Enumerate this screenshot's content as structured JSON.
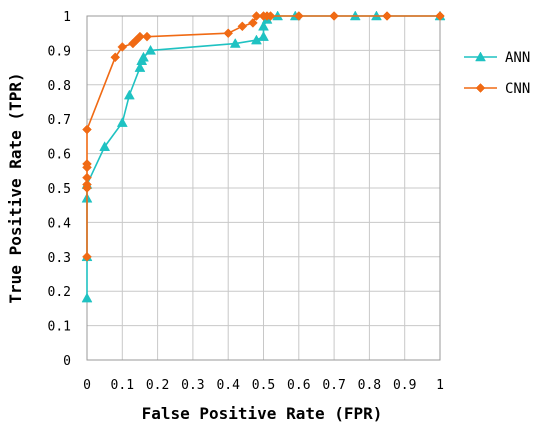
{
  "chart_data": {
    "type": "line",
    "title": "",
    "xlabel": "False Positive Rate (FPR)",
    "ylabel": "True Positive Rate (TPR)",
    "xlim": [
      0,
      1
    ],
    "ylim": [
      0,
      1
    ],
    "x_ticks": [
      "0",
      "0.1",
      "0.2",
      "0.3",
      "0.4",
      "0.5",
      "0.6",
      "0.7",
      "0.8",
      "0.9",
      "1"
    ],
    "y_ticks": [
      "0",
      "0.1",
      "0.2",
      "0.3",
      "0.4",
      "0.5",
      "0.6",
      "0.7",
      "0.8",
      "0.9",
      "1"
    ],
    "grid": true,
    "legend_position": "right",
    "series": [
      {
        "name": "ANN",
        "color": "#1fc2c2",
        "marker": "triangle",
        "points": [
          [
            0,
            0.18
          ],
          [
            0,
            0.3
          ],
          [
            0,
            0.47
          ],
          [
            0,
            0.51
          ],
          [
            0.05,
            0.62
          ],
          [
            0.1,
            0.69
          ],
          [
            0.12,
            0.77
          ],
          [
            0.15,
            0.85
          ],
          [
            0.155,
            0.87
          ],
          [
            0.16,
            0.88
          ],
          [
            0.18,
            0.9
          ],
          [
            0.42,
            0.92
          ],
          [
            0.48,
            0.93
          ],
          [
            0.5,
            0.94
          ],
          [
            0.5,
            0.97
          ],
          [
            0.51,
            0.99
          ],
          [
            0.54,
            1.0
          ],
          [
            0.59,
            1.0
          ],
          [
            0.76,
            1.0
          ],
          [
            0.82,
            1.0
          ],
          [
            1.0,
            1.0
          ]
        ]
      },
      {
        "name": "CNN",
        "color": "#f06a14",
        "marker": "diamond",
        "points": [
          [
            0,
            0.3
          ],
          [
            0,
            0.5
          ],
          [
            0,
            0.51
          ],
          [
            0,
            0.53
          ],
          [
            0,
            0.56
          ],
          [
            0,
            0.57
          ],
          [
            0,
            0.67
          ],
          [
            0.08,
            0.88
          ],
          [
            0.1,
            0.91
          ],
          [
            0.13,
            0.92
          ],
          [
            0.14,
            0.93
          ],
          [
            0.15,
            0.94
          ],
          [
            0.17,
            0.94
          ],
          [
            0.4,
            0.95
          ],
          [
            0.44,
            0.97
          ],
          [
            0.47,
            0.98
          ],
          [
            0.48,
            1.0
          ],
          [
            0.5,
            1.0
          ],
          [
            0.51,
            1.0
          ],
          [
            0.52,
            1.0
          ],
          [
            0.6,
            1.0
          ],
          [
            0.7,
            1.0
          ],
          [
            0.85,
            1.0
          ],
          [
            1.0,
            1.0
          ]
        ]
      }
    ]
  }
}
